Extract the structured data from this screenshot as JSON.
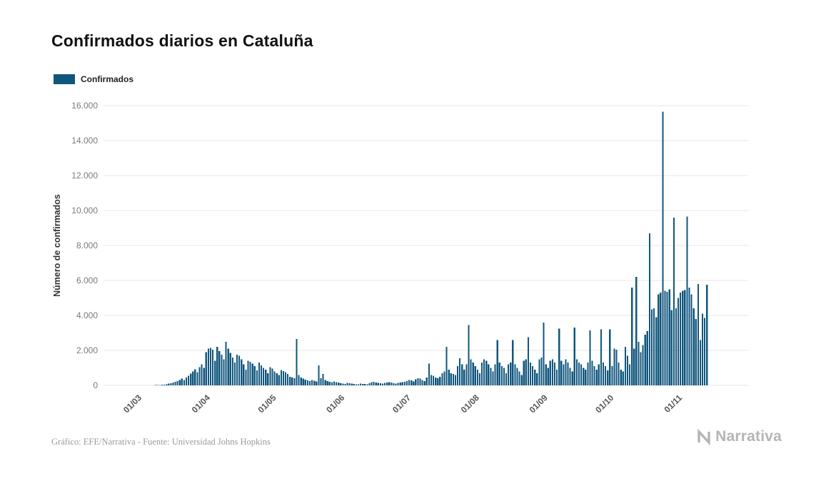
{
  "header": {
    "title": "Confirmados diarios en Cataluña"
  },
  "legend": {
    "label": "Confirmados",
    "color": "#10567d"
  },
  "chart_data": {
    "type": "bar",
    "title": "Confirmados diarios en Cataluña",
    "series_name": "Confirmados",
    "xlabel": "",
    "ylabel": "Número de confirmados",
    "bar_color": "#10567d",
    "grid": true,
    "ylim": [
      0,
      16000
    ],
    "y_ticks": [
      {
        "value": 0,
        "label": "0"
      },
      {
        "value": 2000,
        "label": "2.000"
      },
      {
        "value": 4000,
        "label": "4.000"
      },
      {
        "value": 6000,
        "label": "6.000"
      },
      {
        "value": 8000,
        "label": "8.000"
      },
      {
        "value": 10000,
        "label": "10.000"
      },
      {
        "value": 12000,
        "label": "12.000"
      },
      {
        "value": 14000,
        "label": "14.000"
      },
      {
        "value": 16000,
        "label": "16.000"
      }
    ],
    "x_ticks": [
      {
        "label": "01/03",
        "day_index": 0
      },
      {
        "label": "01/04",
        "day_index": 31
      },
      {
        "label": "01/05",
        "day_index": 61
      },
      {
        "label": "01/06",
        "day_index": 92
      },
      {
        "label": "01/07",
        "day_index": 122
      },
      {
        "label": "01/08",
        "day_index": 153
      },
      {
        "label": "01/09",
        "day_index": 184
      },
      {
        "label": "01/10",
        "day_index": 214
      },
      {
        "label": "01/11",
        "day_index": 245
      }
    ],
    "values_note": "daily confirmed cases, one value per day starting 01/03 (estimated from bar heights)",
    "values": [
      0,
      0,
      0,
      1,
      2,
      3,
      5,
      8,
      12,
      18,
      25,
      35,
      50,
      70,
      95,
      125,
      160,
      200,
      250,
      310,
      380,
      300,
      450,
      560,
      680,
      800,
      920,
      750,
      1050,
      1200,
      1000,
      1900,
      2100,
      2150,
      2050,
      1400,
      2200,
      1950,
      1750,
      1500,
      2480,
      2100,
      1850,
      1600,
      1300,
      1750,
      1700,
      1500,
      1200,
      900,
      1400,
      1350,
      1250,
      1100,
      850,
      1300,
      1150,
      1000,
      900,
      700,
      1050,
      950,
      800,
      700,
      600,
      880,
      820,
      760,
      650,
      500,
      450,
      400,
      2650,
      600,
      450,
      380,
      320,
      280,
      250,
      300,
      260,
      220,
      1150,
      400,
      650,
      300,
      250,
      200,
      180,
      220,
      190,
      160,
      120,
      100,
      90,
      150,
      130,
      110,
      80,
      70,
      60,
      100,
      90,
      80,
      70,
      120,
      180,
      200,
      160,
      140,
      120,
      100,
      150,
      170,
      190,
      160,
      130,
      110,
      140,
      160,
      180,
      200,
      250,
      300,
      280,
      220,
      350,
      400,
      380,
      300,
      250,
      450,
      1250,
      600,
      550,
      450,
      400,
      500,
      700,
      800,
      2200,
      900,
      700,
      650,
      600,
      1100,
      1550,
      1200,
      900,
      1200,
      3450,
      1500,
      1300,
      1100,
      900,
      700,
      1300,
      1500,
      1400,
      1200,
      1000,
      800,
      1200,
      2600,
      1300,
      1100,
      1000,
      700,
      1200,
      1300,
      2600,
      1200,
      1000,
      800,
      600,
      1400,
      1500,
      2750,
      1300,
      1100,
      900,
      700,
      1500,
      1600,
      3600,
      1200,
      1000,
      1400,
      1500,
      1300,
      900,
      3250,
      1400,
      1200,
      1500,
      1300,
      1000,
      800,
      3300,
      1500,
      1300,
      1200,
      1000,
      900,
      1300,
      3150,
      1400,
      1100,
      900,
      1200,
      3200,
      1300,
      1100,
      850,
      3200,
      1100,
      2100,
      2050,
      1300,
      900,
      800,
      2200,
      1700,
      1200,
      5600,
      2100,
      6200,
      2500,
      1900,
      2300,
      2900,
      3100,
      8700,
      4350,
      4400,
      3900,
      5200,
      5300,
      15650,
      5400,
      5350,
      5500,
      4300,
      9600,
      4400,
      5000,
      5300,
      5400,
      5450,
      9650,
      5600,
      5200,
      4400,
      3800,
      5800,
      2600,
      4100,
      3850,
      5750
    ]
  },
  "footer": {
    "source": "Gráfico: EFE/Narrativa - Fuente: Universidad Johns Hopkins",
    "brand": "Narrativa"
  }
}
